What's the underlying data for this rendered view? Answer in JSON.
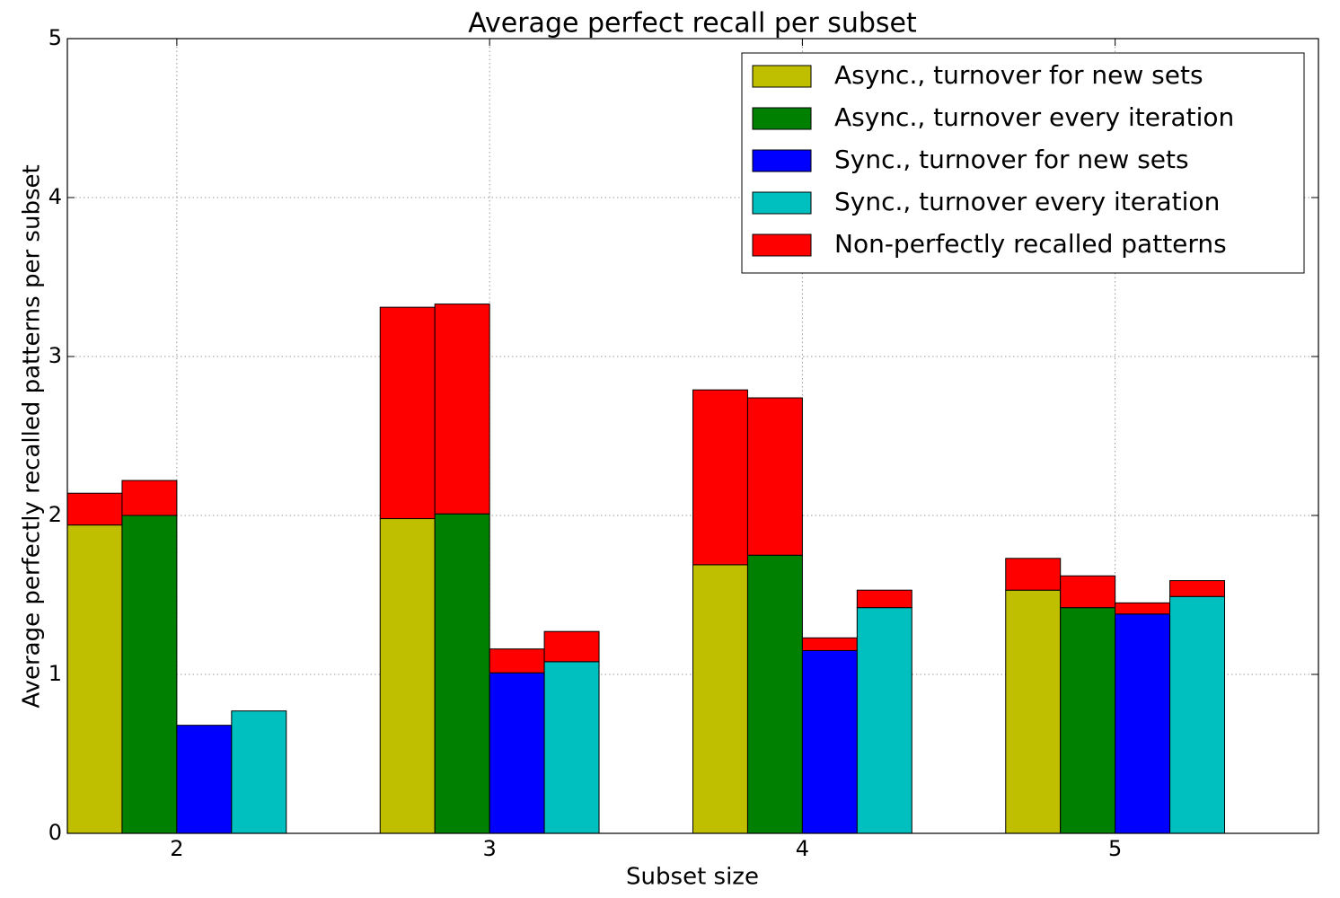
{
  "chart_data": {
    "type": "bar",
    "title": "Average perfect recall per subset",
    "x_label": "Subset size",
    "y_label": "Average perfectly recalled patterns per subset",
    "x": [
      2,
      3,
      4,
      5
    ],
    "xlim": [
      1.65,
      5.65
    ],
    "xticks": [
      2,
      3,
      4,
      5
    ],
    "ylim": [
      0,
      5
    ],
    "yticks": [
      0,
      1,
      2,
      3,
      4,
      5
    ],
    "grid": true,
    "legend": "upper right",
    "series": [
      {
        "name": "Async., turnover for new sets",
        "color": "#bfbf00",
        "values": [
          1.94,
          1.98,
          1.69,
          1.53
        ]
      },
      {
        "name": "Async., turnover every iteration",
        "color": "#008000",
        "values": [
          2.0,
          2.01,
          1.75,
          1.42
        ]
      },
      {
        "name": "Sync., turnover for new sets",
        "color": "#0000ff",
        "values": [
          0.68,
          1.01,
          1.15,
          1.38
        ]
      },
      {
        "name": "Sync., turnover every iteration",
        "color": "#00bfbf",
        "values": [
          0.77,
          1.08,
          1.42,
          1.49
        ]
      },
      {
        "name": "Non-perfectly recalled patterns",
        "color": "#ff0000",
        "stacked_on_each": true,
        "values": [
          [
            0.2,
            1.33,
            1.1,
            0.2
          ],
          [
            0.22,
            1.32,
            0.99,
            0.2
          ],
          [
            0,
            0.15,
            0.08,
            0.07
          ],
          [
            0,
            0.19,
            0.11,
            0.1
          ]
        ]
      }
    ]
  }
}
